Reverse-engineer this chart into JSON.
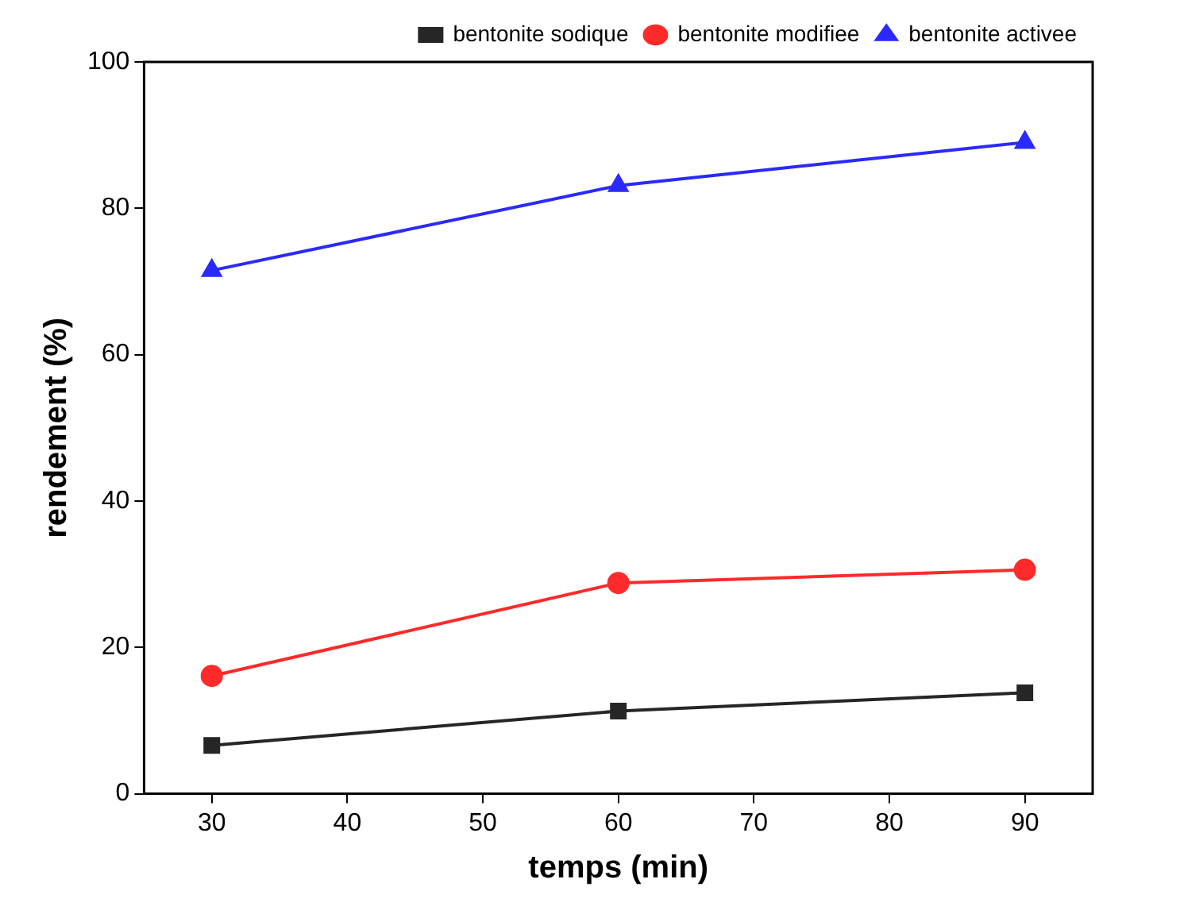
{
  "chart_data": {
    "type": "line",
    "xlabel": "temps (min)",
    "ylabel": "rendement (%)",
    "x": [
      30,
      60,
      90
    ],
    "series": [
      {
        "name": "bentonite sodique",
        "color": "#262626",
        "marker": "square",
        "values": [
          6.6,
          11.3,
          13.8
        ]
      },
      {
        "name": "bentonite modifiee",
        "color": "#ff2a2a",
        "marker": "circle",
        "values": [
          16.1,
          28.8,
          30.6
        ]
      },
      {
        "name": "bentonite activee",
        "color": "#2a2aff",
        "marker": "triangle",
        "values": [
          71.5,
          83.1,
          89.0
        ]
      }
    ],
    "xlim": [
      25,
      95
    ],
    "xticks": [
      30,
      40,
      50,
      60,
      70,
      80,
      90
    ],
    "ylim": [
      0,
      100
    ],
    "yticks": [
      0,
      20,
      40,
      60,
      80,
      100
    ],
    "legend": "top right",
    "grid": false,
    "line_style": "solid"
  }
}
